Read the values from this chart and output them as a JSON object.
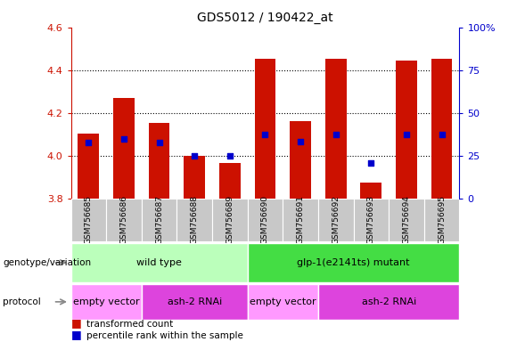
{
  "title": "GDS5012 / 190422_at",
  "samples": [
    "GSM756685",
    "GSM756686",
    "GSM756687",
    "GSM756688",
    "GSM756689",
    "GSM756690",
    "GSM756691",
    "GSM756692",
    "GSM756693",
    "GSM756694",
    "GSM756695"
  ],
  "bar_values": [
    4.105,
    4.27,
    4.155,
    4.0,
    3.965,
    4.455,
    4.16,
    4.455,
    3.875,
    4.445,
    4.455
  ],
  "bar_bottom": 3.8,
  "percentile_values": [
    4.06,
    4.08,
    4.06,
    4.0,
    4.0,
    4.1,
    4.065,
    4.1,
    3.965,
    4.1,
    4.1
  ],
  "ylim": [
    3.8,
    4.6
  ],
  "y2lim": [
    0,
    100
  ],
  "yticks": [
    3.8,
    4.0,
    4.2,
    4.4,
    4.6
  ],
  "y2ticks": [
    0,
    25,
    50,
    75,
    100
  ],
  "y2ticklabels": [
    "0",
    "25",
    "50",
    "75",
    "100%"
  ],
  "bar_color": "#cc1100",
  "percentile_color": "#0000cc",
  "genotype_groups": [
    {
      "label": "wild type",
      "start": 0,
      "end": 5,
      "color": "#bbffbb"
    },
    {
      "label": "glp-1(e2141ts) mutant",
      "start": 5,
      "end": 11,
      "color": "#44dd44"
    }
  ],
  "protocol_groups": [
    {
      "label": "empty vector",
      "start": 0,
      "end": 2,
      "color": "#ff99ff"
    },
    {
      "label": "ash-2 RNAi",
      "start": 2,
      "end": 5,
      "color": "#dd44dd"
    },
    {
      "label": "empty vector",
      "start": 5,
      "end": 7,
      "color": "#ff99ff"
    },
    {
      "label": "ash-2 RNAi",
      "start": 7,
      "end": 11,
      "color": "#dd44dd"
    }
  ],
  "legend_items": [
    {
      "label": "transformed count",
      "color": "#cc1100"
    },
    {
      "label": "percentile rank within the sample",
      "color": "#0000cc"
    }
  ],
  "tick_label_color_left": "#cc1100",
  "tick_label_color_right": "#0000cc",
  "bar_width": 0.6,
  "sample_bg_color": "#c8c8c8"
}
